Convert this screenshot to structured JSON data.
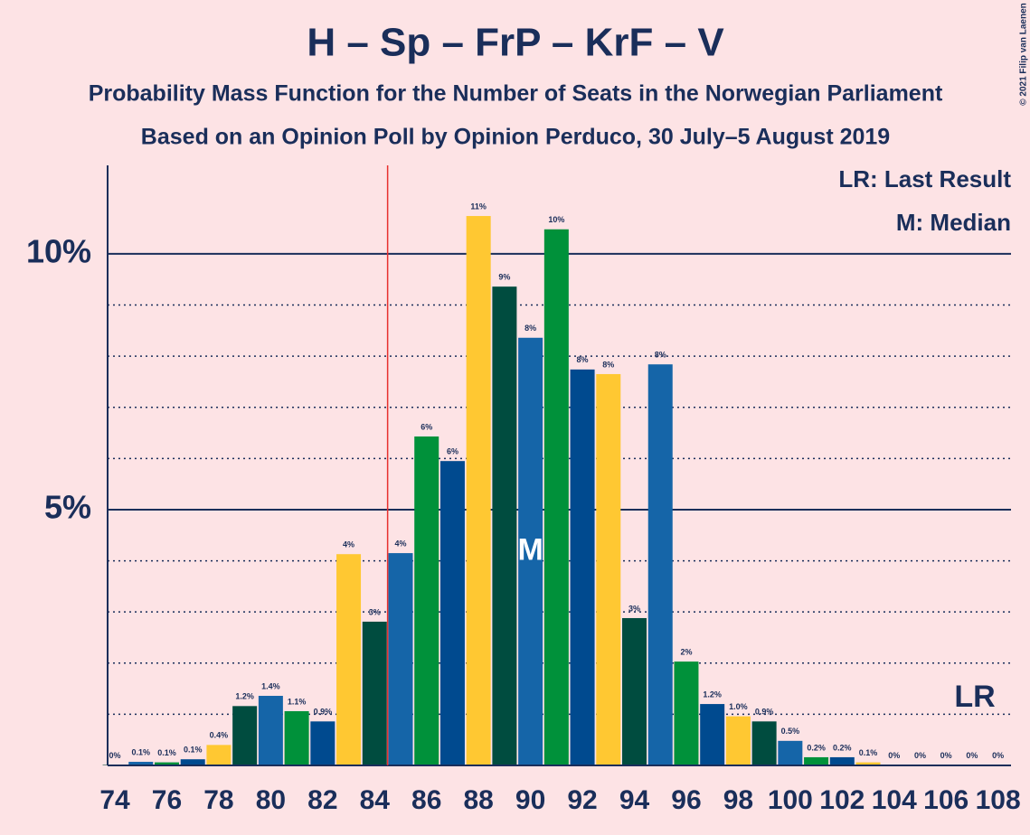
{
  "chart_data": {
    "type": "bar",
    "title": "H – Sp – FrP – KrF – V",
    "subtitle": "Probability Mass Function for the Number of Seats in the Norwegian Parliament",
    "subtitle2": "Based on an Opinion Poll by Opinion Perduco, 30 July–5 August 2019",
    "legend_lr": "LR: Last Result",
    "legend_m": "M: Median",
    "lr_label": "LR",
    "median_label": "M",
    "copyright": "© 2021 Filip van Laenen",
    "last_result": 84.5,
    "median": 90,
    "x": [
      74,
      75,
      76,
      77,
      78,
      79,
      80,
      81,
      82,
      83,
      84,
      85,
      86,
      87,
      88,
      89,
      90,
      91,
      92,
      93,
      94,
      95,
      96,
      97,
      98,
      99,
      100,
      101,
      102,
      103,
      104,
      105,
      106,
      107,
      108
    ],
    "values": [
      0.01,
      0.07,
      0.06,
      0.12,
      0.4,
      1.16,
      1.36,
      1.06,
      0.86,
      4.13,
      2.81,
      4.15,
      6.43,
      5.95,
      10.74,
      9.36,
      8.36,
      10.48,
      7.74,
      7.65,
      2.88,
      7.84,
      2.03,
      1.2,
      0.96,
      0.86,
      0.48,
      0.16,
      0.16,
      0.06,
      0.01,
      0.01,
      0.01,
      0.01,
      0.01
    ],
    "value_labels": [
      "0%",
      "0.1%",
      "0.1%",
      "0.1%",
      "0.4%",
      "1.2%",
      "1.4%",
      "1.1%",
      "0.9%",
      "4%",
      "3%",
      "4%",
      "6%",
      "6%",
      "11%",
      "9%",
      "8%",
      "10%",
      "8%",
      "8%",
      "3%",
      "8%",
      "2%",
      "1.2%",
      "1.0%",
      "0.9%",
      "0.5%",
      "0.2%",
      "0.2%",
      "0.1%",
      "0%",
      "0%",
      "0%",
      "0%",
      "0%"
    ],
    "colors": [
      "#004c3f",
      "#1565a8",
      "#00913a",
      "#004a8f",
      "#ffc832",
      "#004c3f",
      "#1565a8",
      "#00913a",
      "#004a8f",
      "#ffc832",
      "#004c3f",
      "#1565a8",
      "#00913a",
      "#004a8f",
      "#ffc832",
      "#004c3f",
      "#1565a8",
      "#00913a",
      "#004a8f",
      "#ffc832",
      "#004c3f",
      "#1565a8",
      "#00913a",
      "#004a8f",
      "#ffc832",
      "#004c3f",
      "#1565a8",
      "#00913a",
      "#004a8f",
      "#ffc832",
      "#004c3f",
      "#1565a8",
      "#00913a",
      "#004a8f",
      "#ffc832"
    ],
    "xlim": [
      73.72,
      108.5
    ],
    "xticks": [
      74,
      76,
      78,
      80,
      82,
      84,
      86,
      88,
      90,
      92,
      94,
      96,
      98,
      100,
      102,
      104,
      106,
      108
    ],
    "ylim": [
      0,
      11.73
    ],
    "yticks": [
      {
        "value": 5,
        "label": "5%"
      },
      {
        "value": 10,
        "label": "10%"
      }
    ],
    "minor_yticks": [
      1,
      2,
      3,
      4,
      6,
      7,
      8,
      9
    ],
    "grid": true
  }
}
